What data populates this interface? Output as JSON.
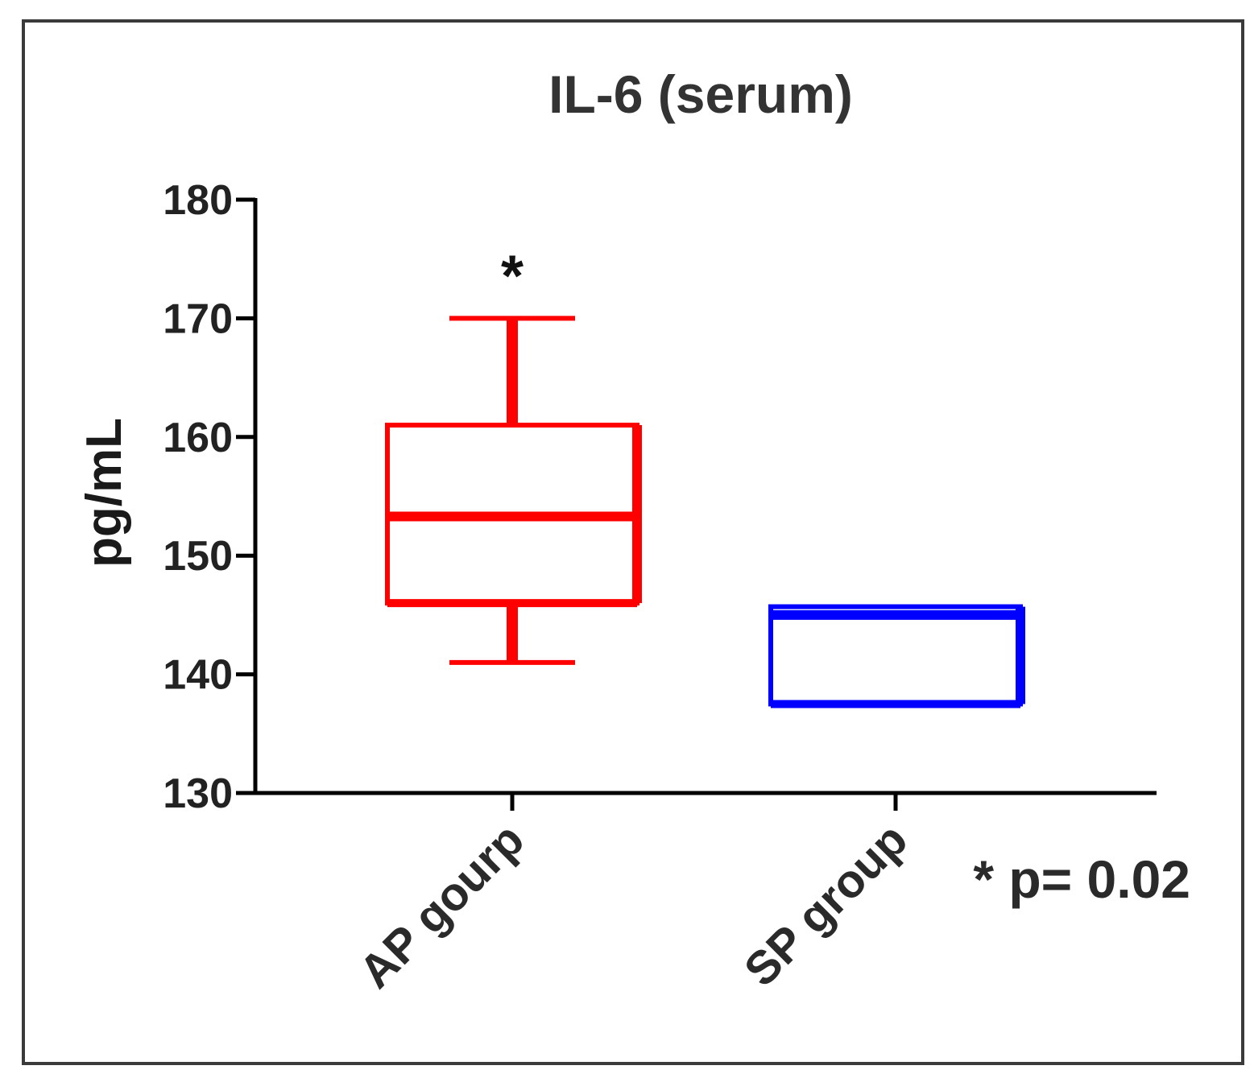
{
  "chart_data": {
    "type": "box",
    "title": "IL-6 (serum)",
    "ylabel": "pg/mL",
    "ylim": [
      130,
      180
    ],
    "yticks": [
      130,
      140,
      150,
      160,
      170,
      180
    ],
    "categories": [
      "AP gourp",
      "SP group"
    ],
    "boxes": [
      {
        "category": "AP gourp",
        "whisker_low": 141,
        "q1": 146,
        "median": 153.3,
        "q3": 161,
        "whisker_high": 170,
        "color": "#ff0000",
        "significance": "*"
      },
      {
        "category": "SP group",
        "whisker_low": 137.5,
        "q1": 137.5,
        "median": 145,
        "q3": 145.7,
        "whisker_high": 145.7,
        "color": "#0000ff"
      }
    ],
    "annotation": "* p= 0.02",
    "grid": false,
    "legend": "none"
  }
}
